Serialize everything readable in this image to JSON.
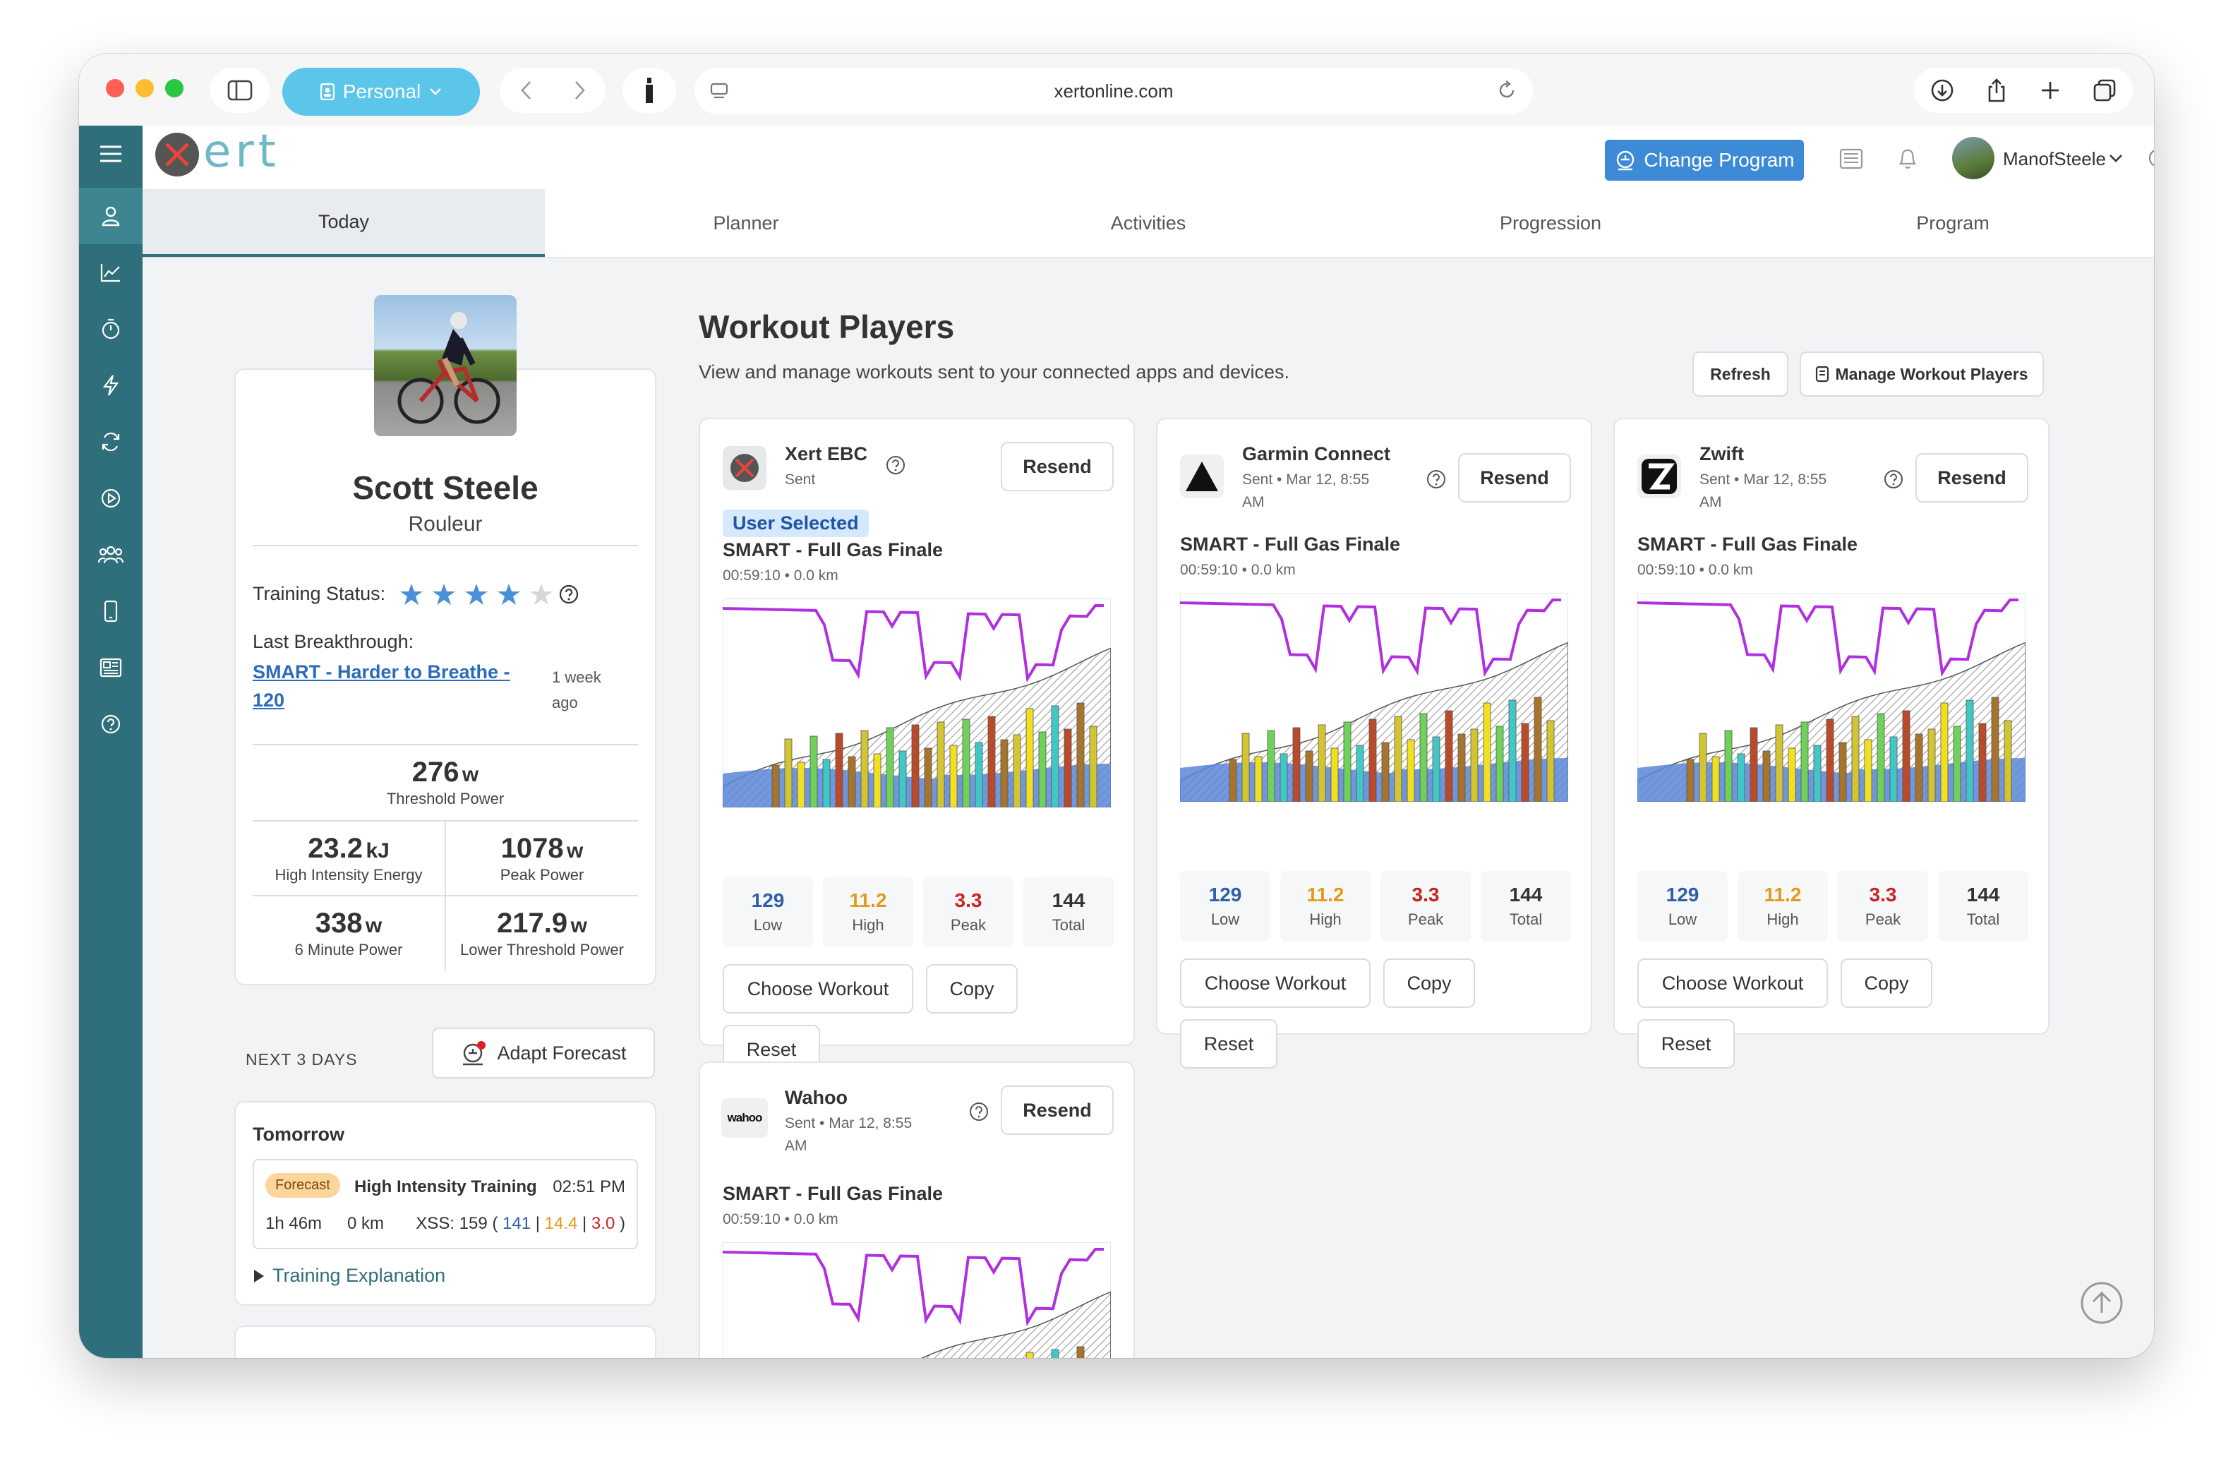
{
  "browser": {
    "profile": "Personal",
    "url": "xertonline.com"
  },
  "app": {
    "logo_text": "ert",
    "change_program": "Change Program",
    "username": "ManofSteele"
  },
  "tabs": [
    "Today",
    "Planner",
    "Activities",
    "Progression",
    "Program"
  ],
  "profile": {
    "name": "Scott Steele",
    "type": "Rouleur",
    "training_status_label": "Training Status:",
    "stars_filled": 4,
    "stars_total": 5,
    "last_breakthrough_label": "Last Breakthrough:",
    "breakthrough_line1": "SMART - Harder to Breathe -",
    "breakthrough_line2": "120",
    "breakthrough_ago_1": "1 week",
    "breakthrough_ago_2": "ago",
    "threshold": {
      "value": "276",
      "unit": "w",
      "label": "Threshold Power"
    },
    "hie": {
      "value": "23.2",
      "unit": "kJ",
      "label": "High Intensity Energy"
    },
    "peak": {
      "value": "1078",
      "unit": "w",
      "label": "Peak Power"
    },
    "six_min": {
      "value": "338",
      "unit": "w",
      "label": "6 Minute Power"
    },
    "ltp": {
      "value": "217.9",
      "unit": "w",
      "label": "Lower Threshold Power"
    }
  },
  "forecast": {
    "next_label": "NEXT 3 DAYS",
    "adapt_label": "Adapt Forecast",
    "day_label": "Tomorrow",
    "badge": "Forecast",
    "workout": "High Intensity Training",
    "time": "02:51 PM",
    "duration": "1h 46m",
    "distance": "0 km",
    "xss_prefix": "XSS: 159 (",
    "xss_low": "141",
    "xss_high": "14.4",
    "xss_peak": "3.0",
    "xss_sep": "|",
    "xss_close": ")",
    "explanation": "Training Explanation"
  },
  "page": {
    "title": "Workout Players",
    "subtitle": "View and manage workouts sent to your connected apps and devices.",
    "refresh": "Refresh",
    "manage": "Manage Workout Players"
  },
  "players": [
    {
      "name": "Xert EBC",
      "status": "Sent",
      "status2": "",
      "tag": "User Selected",
      "resend": "Resend",
      "workout": "SMART - Full Gas Finale",
      "meta": "00:59:10 • 0.0 km",
      "low": "129",
      "high": "11.2",
      "peak": "3.3",
      "total": "144",
      "low_label": "Low",
      "high_label": "High",
      "peak_label": "Peak",
      "total_label": "Total",
      "choose": "Choose Workout",
      "copy": "Copy",
      "reset": "Reset"
    },
    {
      "name": "Garmin Connect",
      "status": "Sent • Mar 12, 8:55",
      "status2": "AM",
      "tag": "",
      "resend": "Resend",
      "workout": "SMART - Full Gas Finale",
      "meta": "00:59:10 • 0.0 km",
      "low": "129",
      "high": "11.2",
      "peak": "3.3",
      "total": "144",
      "low_label": "Low",
      "high_label": "High",
      "peak_label": "Peak",
      "total_label": "Total",
      "choose": "Choose Workout",
      "copy": "Copy",
      "reset": "Reset"
    },
    {
      "name": "Zwift",
      "status": "Sent • Mar 12, 8:55",
      "status2": "AM",
      "tag": "",
      "resend": "Resend",
      "workout": "SMART - Full Gas Finale",
      "meta": "00:59:10 • 0.0 km",
      "low": "129",
      "high": "11.2",
      "peak": "3.3",
      "total": "144",
      "low_label": "Low",
      "high_label": "High",
      "peak_label": "Peak",
      "total_label": "Total",
      "choose": "Choose Workout",
      "copy": "Copy",
      "reset": "Reset"
    },
    {
      "name": "Wahoo",
      "status": "Sent • Mar 12, 8:55",
      "status2": "AM",
      "tag": "",
      "resend": "Resend",
      "workout": "SMART - Full Gas Finale",
      "meta": "00:59:10 • 0.0 km",
      "logo_text": "wahoo"
    }
  ],
  "colors": {
    "accent": "#2f6f7b",
    "primary_button": "#3d8ad6",
    "low": "#2f5fa8",
    "high": "#e39a1b",
    "peak": "#cc2222",
    "star": "#4a90d9",
    "purple_line": "#b030e0"
  }
}
